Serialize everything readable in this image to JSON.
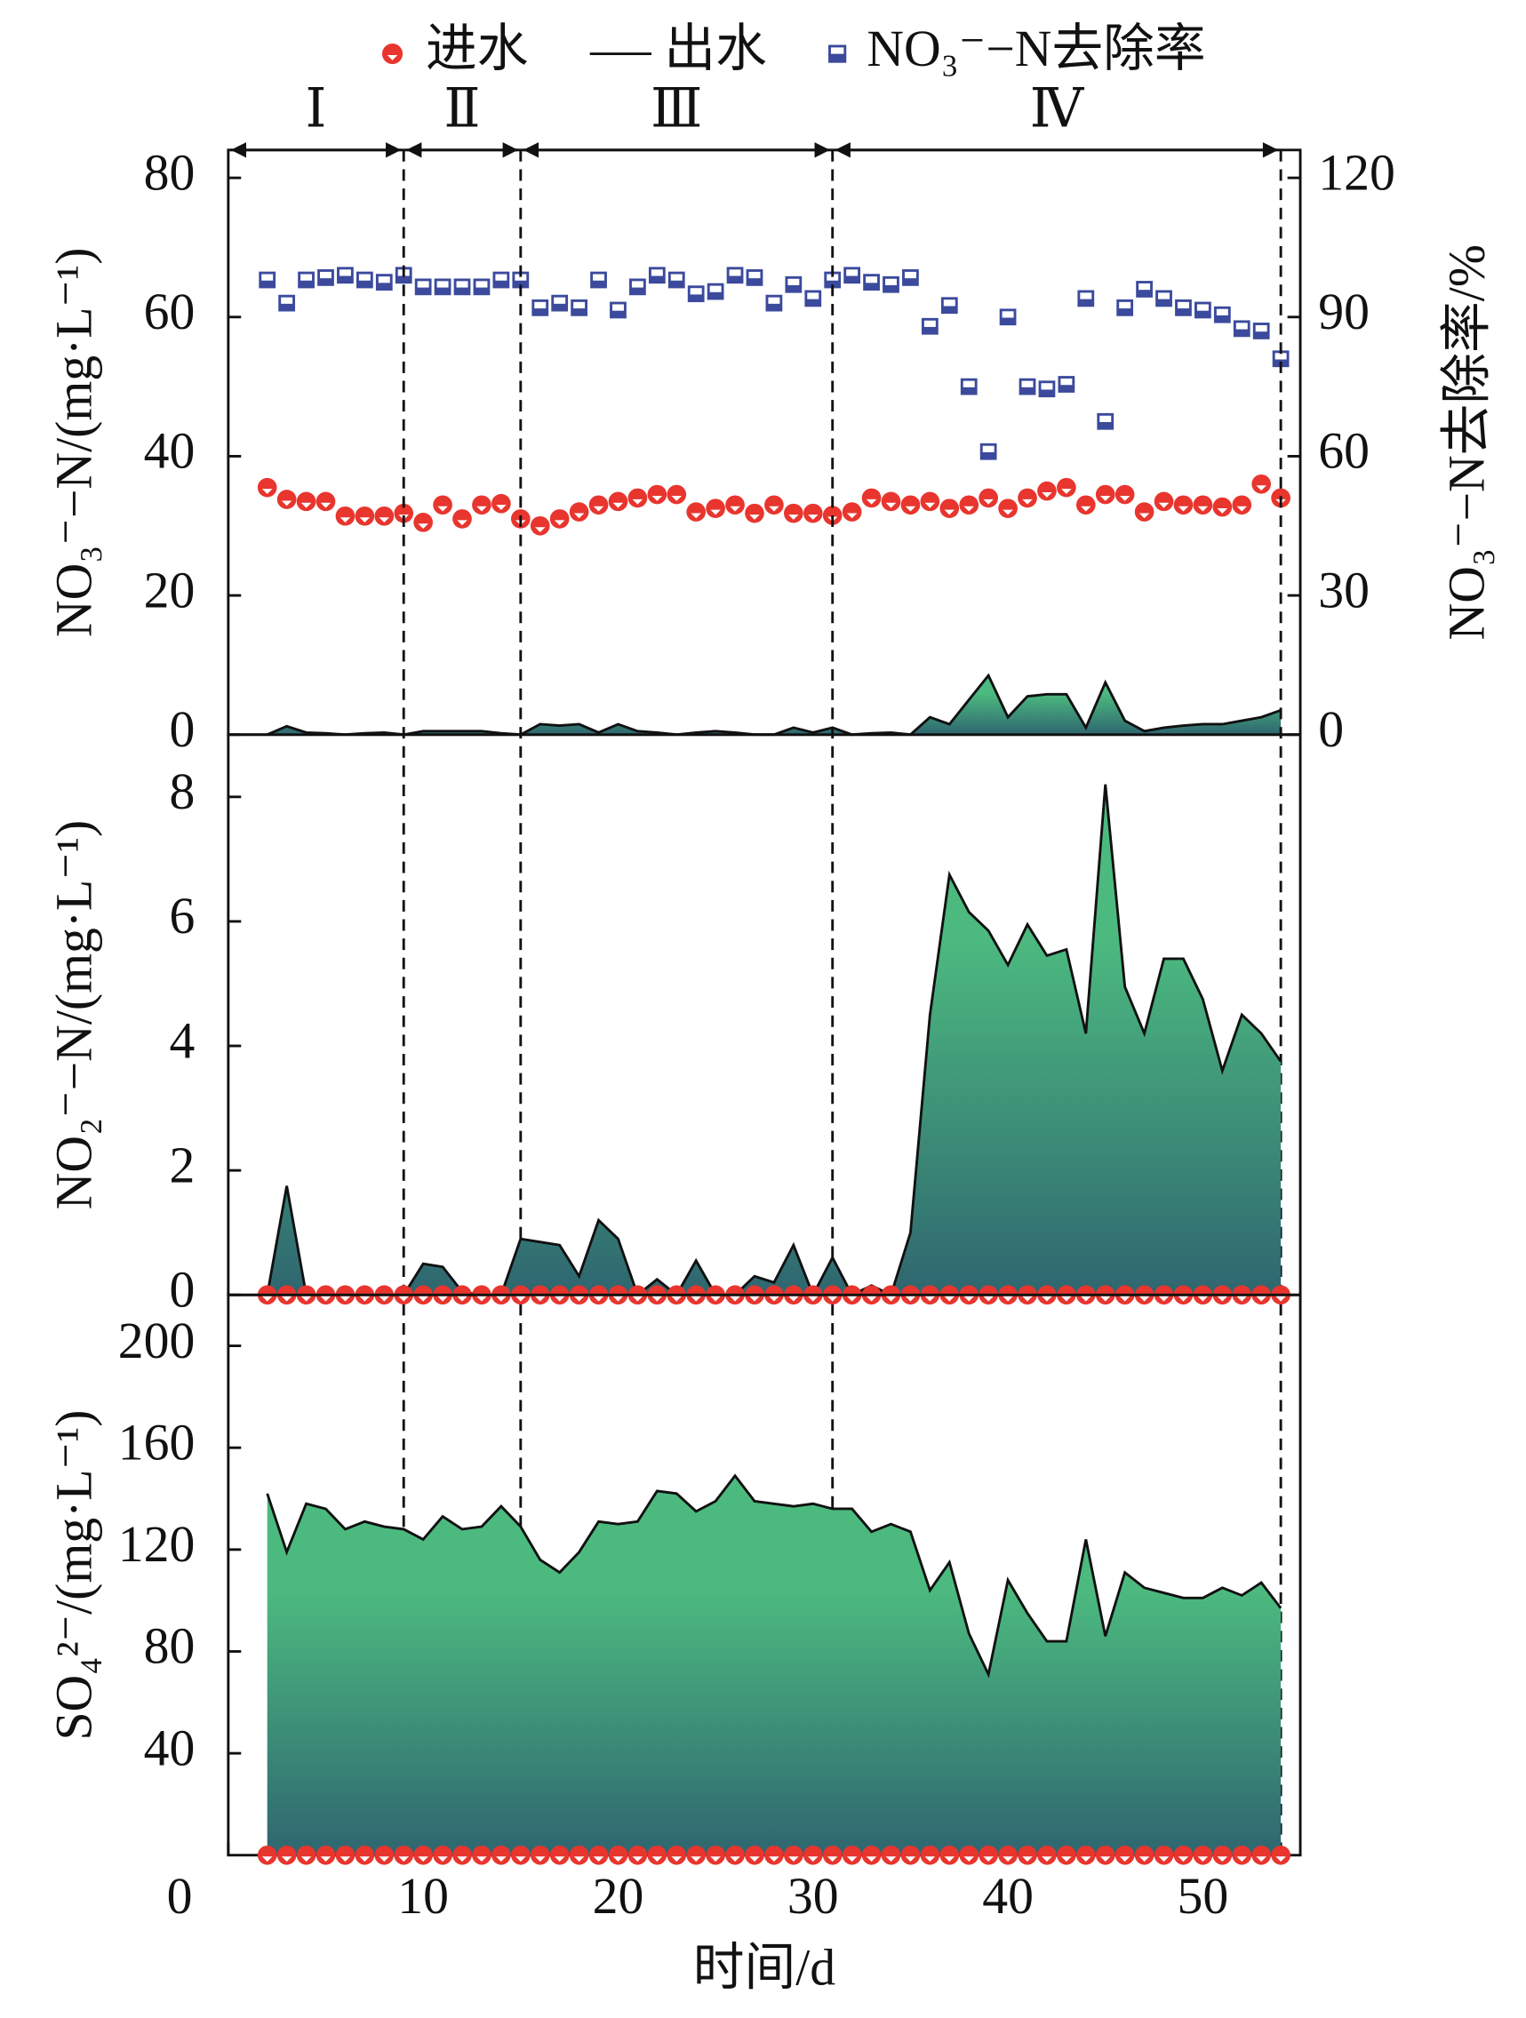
{
  "chart_data": [
    {
      "type": "area",
      "y_label": "NO₃⁻−N/(mg·L⁻¹)",
      "y2_label": "NO₃⁻−N去除率/%",
      "phase_labels": [
        "Ⅰ",
        "Ⅱ",
        "Ⅲ",
        "Ⅳ"
      ],
      "phase_boundaries": [
        0,
        9,
        15,
        31,
        54
      ],
      "x": [
        2,
        3,
        4,
        5,
        6,
        7,
        8,
        9,
        10,
        11,
        12,
        13,
        14,
        15,
        16,
        17,
        18,
        19,
        20,
        21,
        22,
        23,
        24,
        25,
        26,
        27,
        28,
        29,
        30,
        31,
        32,
        33,
        34,
        35,
        36,
        37,
        38,
        39,
        40,
        41,
        42,
        43,
        44,
        45,
        46,
        47,
        48,
        49,
        50,
        51,
        52,
        53,
        54
      ],
      "ylim": [
        0,
        84
      ],
      "yticks": [
        0,
        20,
        40,
        60,
        80
      ],
      "y2lim": [
        0,
        126
      ],
      "y2ticks": [
        0,
        30,
        60,
        90,
        120
      ],
      "series": [
        {
          "name": "进水",
          "type": "scatter",
          "marker": "circle",
          "color": "#e8352e",
          "values": [
            35.5,
            33.8,
            33.5,
            33.5,
            31.4,
            31.4,
            31.4,
            31.8,
            30.5,
            33,
            31,
            33,
            33.2,
            31,
            30,
            31,
            32,
            33,
            33.5,
            34,
            34.5,
            34.5,
            32,
            32.5,
            33,
            31.8,
            33,
            31.8,
            31.8,
            31.5,
            32,
            34,
            33.5,
            33,
            33.5,
            32.5,
            33,
            34,
            32.5,
            34,
            35,
            35.5,
            33,
            34.5,
            34.5,
            32,
            33.5,
            33,
            33,
            32.7,
            33,
            36,
            34
          ]
        },
        {
          "name": "出水",
          "type": "area",
          "color": "#4cba7f",
          "color_bottom": "#2f6670",
          "values": [
            0,
            1.2,
            0.3,
            0.2,
            0,
            0.2,
            0.3,
            0,
            0.5,
            0.5,
            0.5,
            0.5,
            0.2,
            0,
            1.5,
            1.3,
            1.5,
            0.3,
            1.5,
            0.5,
            0.3,
            0,
            0.3,
            0.5,
            0.3,
            0,
            0,
            1,
            0.3,
            1,
            0,
            0.2,
            0.3,
            0,
            2.5,
            1.5,
            5,
            8.5,
            2.5,
            5.5,
            5.8,
            5.8,
            1,
            7.5,
            2,
            0.5,
            1,
            1.3,
            1.5,
            1.5,
            2,
            2.5,
            3.5
          ]
        },
        {
          "name": "NO₃⁻−N去除率",
          "type": "scatter",
          "marker": "square",
          "axis": "y2",
          "color": "#3b4a9c",
          "values": [
            98,
            93,
            98,
            98.5,
            99,
            98,
            97.5,
            99,
            96.5,
            96.5,
            96.5,
            96.5,
            98,
            98,
            92,
            93,
            92,
            98,
            91.5,
            96.5,
            99,
            98,
            95,
            95.5,
            99,
            98.5,
            93,
            97,
            94,
            98,
            99,
            97.5,
            97,
            98.5,
            88,
            92.5,
            75,
            61,
            90,
            75,
            74.5,
            75.5,
            94,
            67.5,
            92,
            96,
            94,
            92,
            91.5,
            90.5,
            87.5,
            87,
            81
          ]
        }
      ]
    },
    {
      "type": "area",
      "y_label": "NO₂⁻−N/(mg·L⁻¹)",
      "x": [
        2,
        3,
        4,
        5,
        6,
        7,
        8,
        9,
        10,
        11,
        12,
        13,
        14,
        15,
        16,
        17,
        18,
        19,
        20,
        21,
        22,
        23,
        24,
        25,
        26,
        27,
        28,
        29,
        30,
        31,
        32,
        33,
        34,
        35,
        36,
        37,
        38,
        39,
        40,
        41,
        42,
        43,
        44,
        45,
        46,
        47,
        48,
        49,
        50,
        51,
        52,
        53,
        54
      ],
      "ylim": [
        0,
        9
      ],
      "yticks": [
        0,
        2,
        4,
        6,
        8
      ],
      "series": [
        {
          "type": "scatter",
          "marker": "circle",
          "color": "#e8352e",
          "values": [
            0,
            0,
            0,
            0,
            0,
            0,
            0,
            0,
            0,
            0,
            0,
            0,
            0,
            0,
            0,
            0,
            0,
            0,
            0,
            0,
            0,
            0,
            0,
            0,
            0,
            0,
            0,
            0,
            0,
            0,
            0,
            0,
            0,
            0,
            0,
            0,
            0,
            0,
            0,
            0,
            0,
            0,
            0,
            0,
            0,
            0,
            0,
            0,
            0,
            0,
            0,
            0,
            0
          ]
        },
        {
          "type": "area",
          "color": "#4cba7f",
          "color_bottom": "#2f6670",
          "values": [
            0,
            1.75,
            0,
            0,
            0,
            0,
            0,
            0,
            0.5,
            0.45,
            0.05,
            0,
            0,
            0.9,
            0.85,
            0.8,
            0.3,
            1.2,
            0.9,
            0,
            0.25,
            0,
            0.55,
            0,
            0,
            0.3,
            0.2,
            0.8,
            0,
            0.6,
            0,
            0.15,
            0,
            1,
            4.5,
            6.75,
            6.15,
            5.85,
            5.3,
            5.95,
            5.45,
            5.55,
            4.2,
            8.2,
            4.95,
            4.2,
            5.4,
            5.4,
            4.75,
            3.6,
            4.5,
            4.2,
            3.75
          ]
        }
      ]
    },
    {
      "type": "area",
      "y_label": "SO₄²⁻/(mg·L⁻¹)",
      "x_label": "时间/d",
      "x": [
        2,
        3,
        4,
        5,
        6,
        7,
        8,
        9,
        10,
        11,
        12,
        13,
        14,
        15,
        16,
        17,
        18,
        19,
        20,
        21,
        22,
        23,
        24,
        25,
        26,
        27,
        28,
        29,
        30,
        31,
        32,
        33,
        34,
        35,
        36,
        37,
        38,
        39,
        40,
        41,
        42,
        43,
        44,
        45,
        46,
        47,
        48,
        49,
        50,
        51,
        52,
        53,
        54
      ],
      "xlim": [
        0,
        55
      ],
      "xticks": [
        0,
        10,
        20,
        30,
        40,
        50
      ],
      "ylim": [
        0,
        220
      ],
      "yticks": [
        40,
        80,
        120,
        160,
        200
      ],
      "series": [
        {
          "type": "scatter",
          "marker": "circle",
          "color": "#e8352e",
          "values": [
            0,
            0,
            0,
            0,
            0,
            0,
            0,
            0,
            0,
            0,
            0,
            0,
            0,
            0,
            0,
            0,
            0,
            0,
            0,
            0,
            0,
            0,
            0,
            0,
            0,
            0,
            0,
            0,
            0,
            0,
            0,
            0,
            0,
            0,
            0,
            0,
            0,
            0,
            0,
            0,
            0,
            0,
            0,
            0,
            0,
            0,
            0,
            0,
            0,
            0,
            0,
            0,
            0
          ]
        },
        {
          "type": "area",
          "color": "#4cba7f",
          "color_bottom": "#2f6670",
          "values": [
            142,
            119,
            138,
            136,
            128,
            131,
            129,
            128,
            124,
            133,
            128,
            129,
            137,
            129,
            116,
            111,
            119,
            131,
            130,
            131,
            143,
            142,
            135,
            139,
            149,
            139,
            138,
            137,
            138,
            136,
            136,
            127,
            130,
            127,
            104,
            115,
            87,
            71,
            108,
            95,
            84,
            84,
            124,
            86,
            111,
            105,
            103,
            101,
            101,
            105,
            102,
            107,
            97
          ]
        }
      ]
    }
  ]
}
